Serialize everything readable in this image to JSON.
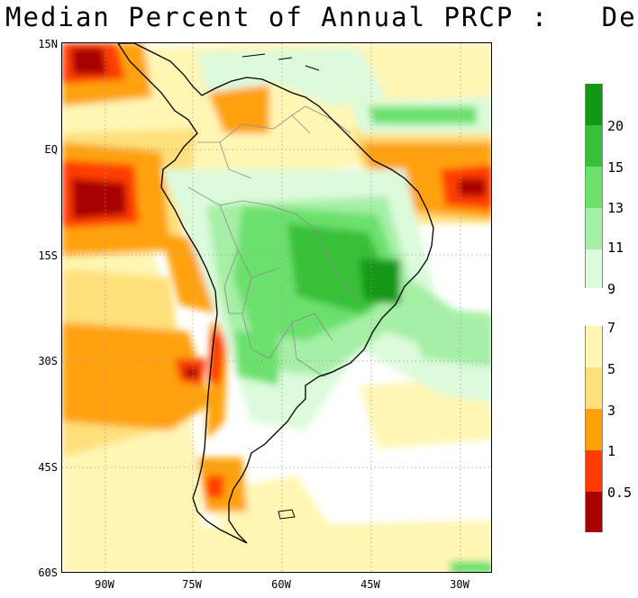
{
  "title": "Median Percent of Annual PRCP :   Dec",
  "map": {
    "lat_labels": [
      "15N",
      "EQ",
      "15S",
      "30S",
      "45S",
      "60S"
    ],
    "lon_labels": [
      "90W",
      "75W",
      "60W",
      "45W",
      "30W"
    ]
  },
  "legend": {
    "labels": [
      "20",
      "15",
      "13",
      "11",
      "9",
      "7",
      "5",
      "3",
      "1",
      "0.5"
    ],
    "colors": {
      "above": [
        "#129812",
        "#38c038",
        "#6ce06c",
        "#a6efa6",
        "#dcfadc"
      ],
      "below": [
        "#fff6b4",
        "#ffe07a",
        "#ffa20a",
        "#ff3c00",
        "#a80000"
      ]
    }
  }
}
